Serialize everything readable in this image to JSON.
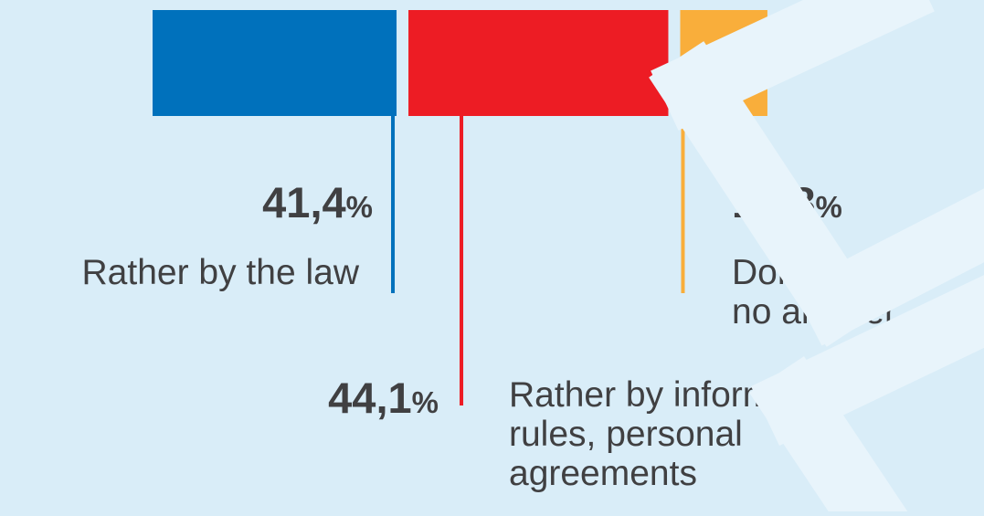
{
  "chart_data": {
    "type": "bar",
    "orientation": "horizontal-stacked",
    "title": "",
    "xlabel": "",
    "ylabel": "",
    "percent_sign": "%",
    "categories": [
      "Rather by the law",
      "Rather by informal rules, personal agreements",
      "Don’t know / no answer"
    ],
    "values": [
      41.4,
      44.1,
      14.8
    ],
    "value_labels": [
      "41,4",
      "44,1",
      "14,8"
    ],
    "label_lines": [
      [
        "Rather by the law"
      ],
      [
        "Rather by informal",
        "rules, personal",
        "agreements"
      ],
      [
        "Don’t know /",
        "no answer"
      ]
    ],
    "colors": [
      "#0071bc",
      "#ed1c24",
      "#f9ae3b"
    ],
    "grid": false,
    "legend": "none"
  }
}
